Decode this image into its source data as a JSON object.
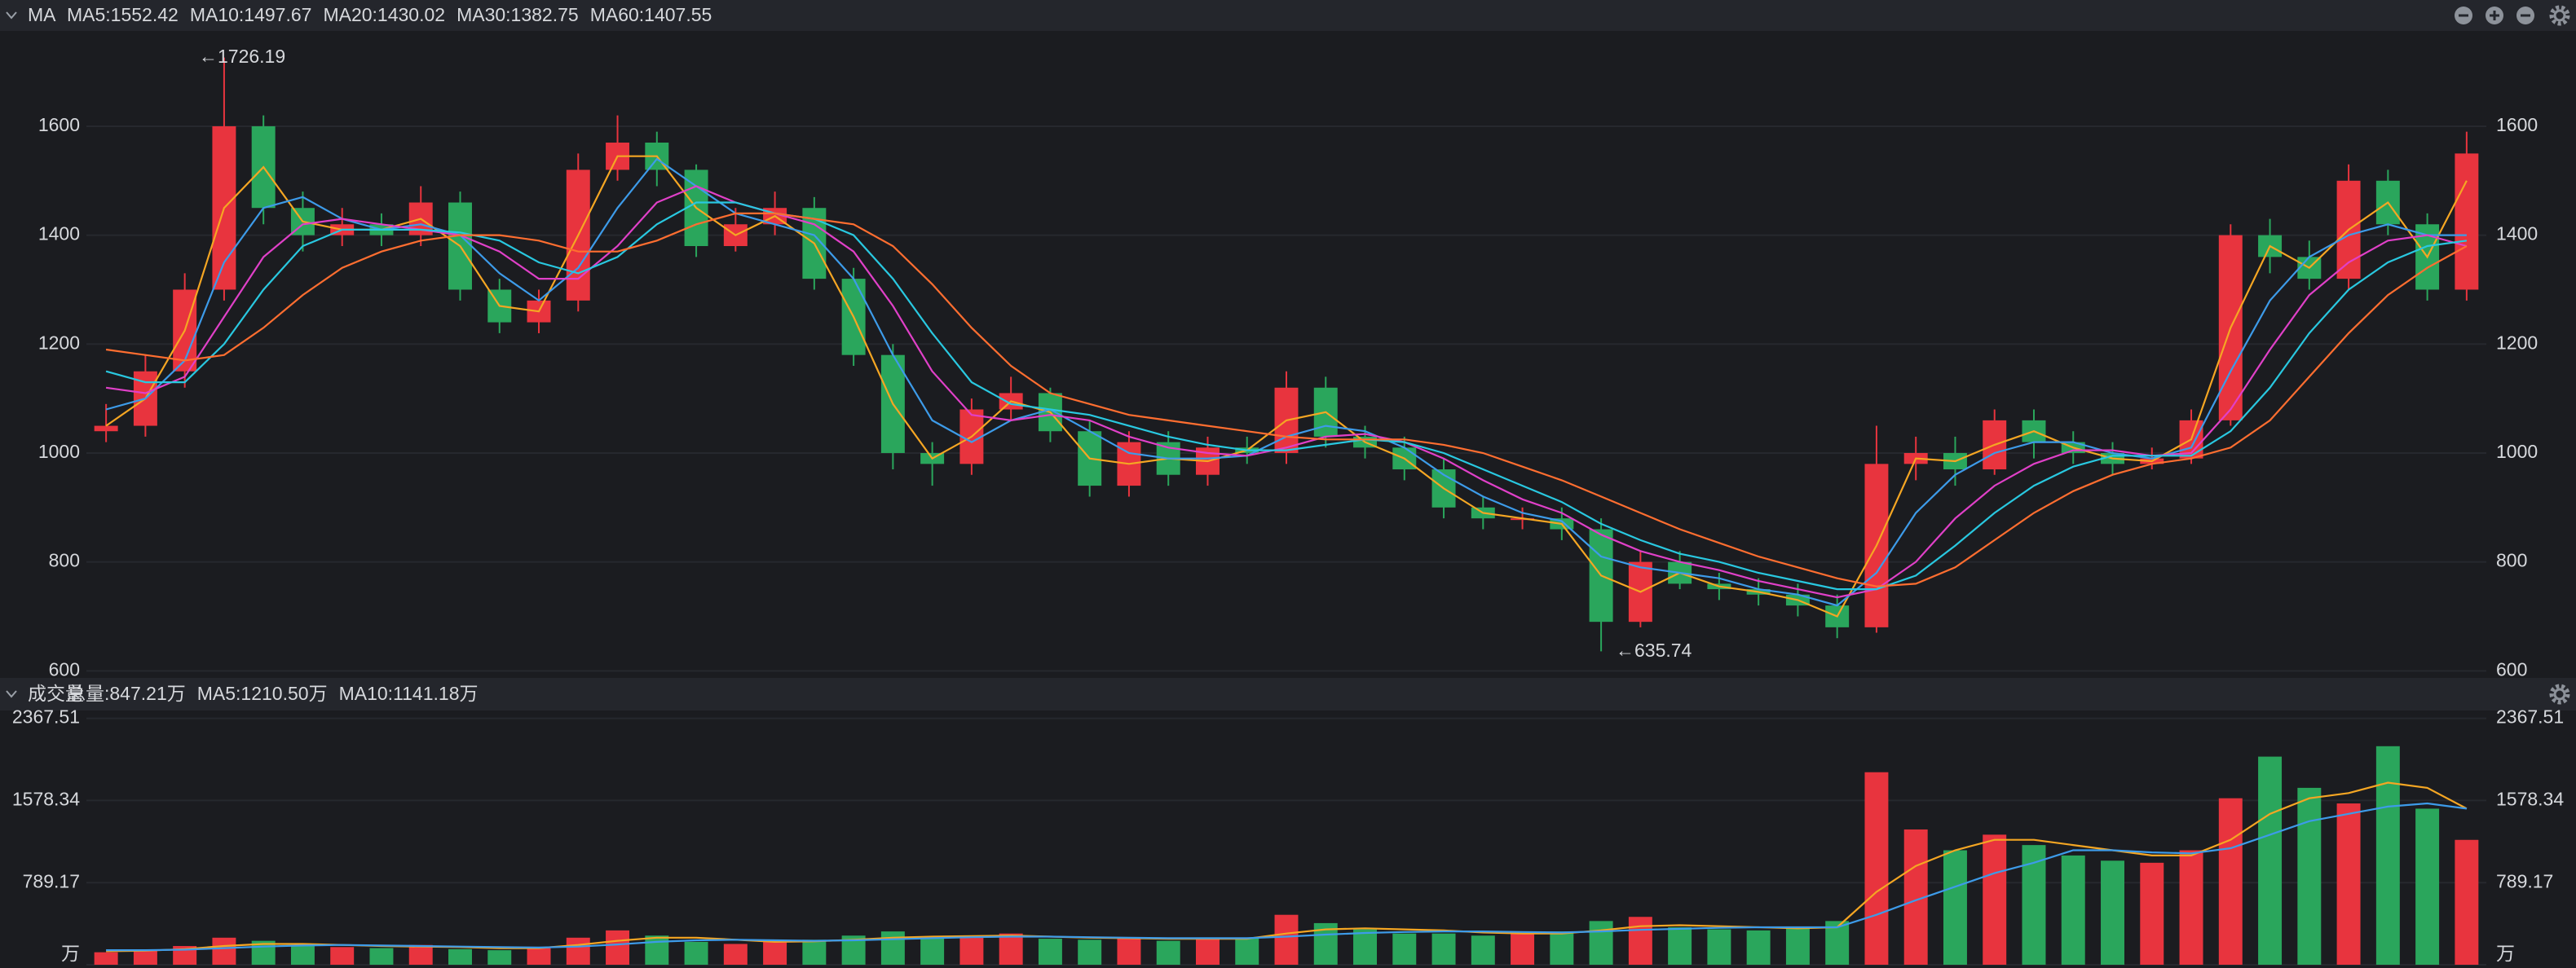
{
  "chart_data": [
    {
      "type": "candlestick",
      "title": "MA",
      "annotations": [
        "←1726.19",
        "←635.74"
      ],
      "up_color": "#e8343e",
      "down_color": "#2aa65c",
      "ylim": [
        590,
        1772
      ],
      "yticks": [
        600,
        800,
        1000,
        1200,
        1400,
        1600
      ],
      "grid": true,
      "open": [
        1040,
        1050,
        1150,
        1300,
        1600,
        1450,
        1400,
        1420,
        1400,
        1460,
        1300,
        1240,
        1280,
        1520,
        1570,
        1520,
        1380,
        1420,
        1450,
        1320,
        1180,
        1000,
        980,
        1080,
        1110,
        1040,
        940,
        1020,
        960,
        1010,
        1000,
        1120,
        1030,
        1010,
        970,
        900,
        880,
        880,
        860,
        690,
        800,
        760,
        750,
        740,
        720,
        680,
        980,
        1000,
        970,
        1060,
        1020,
        1000,
        980,
        990,
        1060,
        1400,
        1360,
        1320,
        1500,
        1420,
        1300
      ],
      "high": [
        1090,
        1180,
        1330,
        1726.19,
        1620,
        1480,
        1450,
        1440,
        1490,
        1480,
        1320,
        1300,
        1550,
        1620,
        1590,
        1530,
        1450,
        1480,
        1470,
        1340,
        1200,
        1020,
        1100,
        1140,
        1120,
        1060,
        1040,
        1040,
        1030,
        1030,
        1150,
        1140,
        1050,
        1030,
        990,
        920,
        900,
        900,
        880,
        820,
        820,
        780,
        770,
        760,
        740,
        1050,
        1030,
        1030,
        1080,
        1080,
        1040,
        1020,
        1010,
        1080,
        1420,
        1430,
        1390,
        1530,
        1520,
        1440,
        1590
      ],
      "low": [
        1020,
        1030,
        1120,
        1280,
        1420,
        1370,
        1380,
        1380,
        1380,
        1280,
        1220,
        1220,
        1260,
        1500,
        1490,
        1360,
        1370,
        1400,
        1300,
        1160,
        970,
        940,
        960,
        1060,
        1020,
        920,
        920,
        940,
        940,
        980,
        980,
        1010,
        990,
        950,
        880,
        860,
        860,
        840,
        635.74,
        680,
        750,
        730,
        720,
        700,
        660,
        670,
        950,
        940,
        960,
        990,
        980,
        960,
        970,
        980,
        1050,
        1330,
        1300,
        1300,
        1400,
        1280,
        1280
      ],
      "close": [
        1050,
        1150,
        1300,
        1600,
        1450,
        1400,
        1420,
        1400,
        1460,
        1300,
        1240,
        1280,
        1520,
        1570,
        1520,
        1380,
        1420,
        1450,
        1320,
        1180,
        1000,
        980,
        1080,
        1110,
        1040,
        940,
        1020,
        960,
        1010,
        1000,
        1120,
        1030,
        1010,
        970,
        900,
        880,
        880,
        860,
        690,
        800,
        760,
        750,
        740,
        720,
        680,
        980,
        1000,
        970,
        1060,
        1020,
        1000,
        980,
        990,
        1060,
        1400,
        1360,
        1320,
        1500,
        1420,
        1300,
        1550
      ],
      "series": [
        {
          "name": "MA5:1552.42",
          "color": "#f5a623",
          "values": [
            1050,
            1100,
            1225,
            1450,
            1525,
            1425,
            1410,
            1410,
            1430,
            1380,
            1270,
            1260,
            1400,
            1545,
            1545,
            1450,
            1400,
            1435,
            1385,
            1250,
            1090,
            990,
            1030,
            1095,
            1075,
            990,
            980,
            990,
            985,
            1005,
            1060,
            1075,
            1020,
            990,
            935,
            890,
            880,
            870,
            775,
            745,
            780,
            755,
            745,
            730,
            700,
            830,
            990,
            985,
            1015,
            1040,
            1010,
            990,
            985,
            1025,
            1230,
            1380,
            1340,
            1410,
            1460,
            1360,
            1500
          ]
        },
        {
          "name": "MA10:1497.67",
          "color": "#3d9be9",
          "values": [
            1080,
            1100,
            1170,
            1350,
            1450,
            1470,
            1430,
            1410,
            1420,
            1400,
            1330,
            1280,
            1340,
            1450,
            1540,
            1490,
            1440,
            1420,
            1400,
            1320,
            1180,
            1060,
            1020,
            1060,
            1080,
            1040,
            1000,
            990,
            990,
            995,
            1030,
            1050,
            1040,
            1010,
            960,
            920,
            890,
            875,
            810,
            790,
            780,
            770,
            750,
            740,
            720,
            780,
            890,
            960,
            1000,
            1020,
            1020,
            1000,
            990,
            1010,
            1150,
            1280,
            1360,
            1400,
            1420,
            1400,
            1400
          ]
        },
        {
          "name": "MA20:1430.02",
          "color": "#e040c8",
          "values": [
            1120,
            1110,
            1140,
            1250,
            1360,
            1420,
            1430,
            1420,
            1410,
            1400,
            1370,
            1320,
            1320,
            1380,
            1460,
            1490,
            1460,
            1440,
            1420,
            1370,
            1270,
            1150,
            1070,
            1060,
            1070,
            1060,
            1030,
            1010,
            1000,
            995,
            1010,
            1030,
            1035,
            1020,
            990,
            950,
            915,
            890,
            850,
            820,
            800,
            785,
            765,
            750,
            735,
            750,
            800,
            880,
            940,
            980,
            1005,
            1005,
            995,
            1000,
            1080,
            1190,
            1290,
            1350,
            1390,
            1400,
            1380
          ]
        },
        {
          "name": "MA30:1382.75",
          "color": "#29c8e0",
          "values": [
            1150,
            1130,
            1130,
            1200,
            1300,
            1380,
            1410,
            1410,
            1410,
            1405,
            1390,
            1350,
            1330,
            1360,
            1420,
            1460,
            1460,
            1440,
            1430,
            1400,
            1320,
            1220,
            1130,
            1090,
            1080,
            1070,
            1050,
            1030,
            1015,
            1005,
            1005,
            1015,
            1025,
            1020,
            1000,
            970,
            940,
            910,
            870,
            840,
            815,
            800,
            780,
            765,
            750,
            750,
            775,
            830,
            890,
            940,
            975,
            995,
            995,
            995,
            1040,
            1120,
            1220,
            1300,
            1350,
            1380,
            1390
          ]
        },
        {
          "name": "MA60:1407.55",
          "color": "#ff6e30",
          "values": [
            1190,
            1180,
            1170,
            1180,
            1230,
            1290,
            1340,
            1370,
            1390,
            1400,
            1400,
            1390,
            1370,
            1370,
            1390,
            1420,
            1440,
            1440,
            1430,
            1420,
            1380,
            1310,
            1230,
            1160,
            1110,
            1090,
            1070,
            1060,
            1050,
            1040,
            1030,
            1025,
            1025,
            1025,
            1015,
            1000,
            975,
            950,
            920,
            890,
            860,
            835,
            810,
            790,
            770,
            755,
            760,
            790,
            840,
            890,
            930,
            960,
            980,
            990,
            1010,
            1060,
            1140,
            1220,
            1290,
            1340,
            1380
          ]
        }
      ]
    },
    {
      "type": "bar",
      "title": "成交量",
      "total_label": "总量:847.21万",
      "total_color": "#e8434a",
      "ylim": [
        0,
        2443
      ],
      "yticks": [
        {
          "value": 0,
          "label": "万"
        },
        789.17,
        1578.34,
        2367.51
      ],
      "grid": true,
      "values": [
        120,
        140,
        180,
        260,
        230,
        180,
        170,
        160,
        190,
        150,
        140,
        160,
        260,
        330,
        280,
        220,
        200,
        220,
        240,
        280,
        320,
        260,
        280,
        300,
        250,
        240,
        260,
        230,
        250,
        260,
        480,
        400,
        340,
        300,
        300,
        280,
        300,
        320,
        420,
        460,
        360,
        340,
        330,
        360,
        420,
        1850,
        1300,
        1100,
        1250,
        1150,
        1050,
        1000,
        980,
        1100,
        1600,
        2000,
        1700,
        1550,
        2100,
        1500,
        1200
      ],
      "series": [
        {
          "name": "MA5:1210.50万",
          "color": "#f5a623",
          "values": [
            130,
            135,
            150,
            180,
            200,
            200,
            190,
            180,
            175,
            170,
            160,
            160,
            190,
            230,
            260,
            260,
            240,
            220,
            225,
            240,
            260,
            270,
            275,
            280,
            270,
            260,
            255,
            250,
            250,
            250,
            300,
            340,
            350,
            340,
            330,
            310,
            300,
            300,
            330,
            370,
            380,
            370,
            360,
            350,
            360,
            700,
            950,
            1100,
            1200,
            1200,
            1150,
            1100,
            1050,
            1050,
            1200,
            1450,
            1600,
            1650,
            1750,
            1700,
            1500
          ]
        },
        {
          "name": "MA10:1141.18万",
          "color": "#3d9be9",
          "values": [
            140,
            140,
            145,
            160,
            175,
            185,
            190,
            185,
            180,
            175,
            170,
            165,
            175,
            195,
            220,
            235,
            240,
            235,
            230,
            235,
            245,
            255,
            265,
            270,
            270,
            265,
            260,
            255,
            255,
            255,
            270,
            290,
            305,
            315,
            320,
            320,
            315,
            310,
            320,
            335,
            345,
            355,
            360,
            360,
            360,
            480,
            620,
            750,
            880,
            980,
            1100,
            1100,
            1080,
            1070,
            1120,
            1250,
            1380,
            1450,
            1520,
            1550,
            1500
          ]
        }
      ]
    }
  ]
}
